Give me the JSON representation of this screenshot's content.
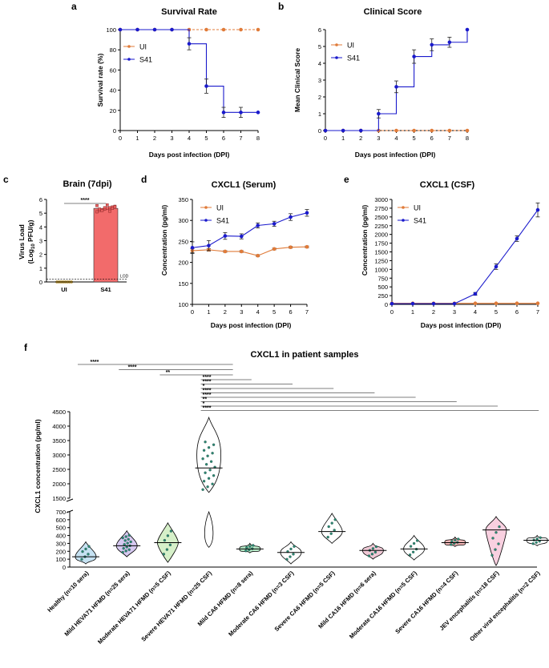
{
  "colors": {
    "ui": "#E07B39",
    "s41": "#1A1ACC",
    "bar": "#F26B6B",
    "dot_bar": "#E85F5F",
    "dot_ui": "#F0C040",
    "violin_dot": "#2E8B73"
  },
  "panels": {
    "a": {
      "letter": "a",
      "title": "Survival Rate",
      "ylabel": "Survival rate (%)",
      "xlabel": "Days post infection (DPI)"
    },
    "b": {
      "letter": "b",
      "title": "Clinical Score",
      "ylabel": "Mean Clinical Score",
      "xlabel": "Days post infection (DPI)"
    },
    "c": {
      "letter": "c",
      "title": "Brain (7dpi)",
      "ylabel_line1": "Virus Load",
      "ylabel_line2": "(Log10 PFU/g)",
      "lod": "LOD",
      "sig": "****"
    },
    "d": {
      "letter": "d",
      "title": "CXCL1 (Serum)",
      "ylabel": "Concentration (pg/ml)",
      "xlabel": "Days post infection (DPI)"
    },
    "e": {
      "letter": "e",
      "title": "CXCL1 (CSF)",
      "ylabel": "Concentration (pg/ml)",
      "xlabel": "Days post infection (DPI)"
    },
    "f": {
      "letter": "f",
      "title": "CXCL1 in patient samples",
      "ylabel": "CXCL1 concentration (pg/ml)"
    }
  },
  "chart_data": [
    {
      "panel": "a",
      "type": "line",
      "step": true,
      "x": [
        0,
        1,
        2,
        3,
        4,
        5,
        6,
        7,
        8
      ],
      "xlim": [
        0,
        8
      ],
      "ylim": [
        0,
        100
      ],
      "xticks": [
        "0",
        "1",
        "2",
        "3",
        "4",
        "5",
        "6",
        "7",
        "8"
      ],
      "yticks": [
        "0",
        "20",
        "40",
        "60",
        "80",
        "100"
      ],
      "series": [
        {
          "name": "UI",
          "values": [
            100,
            100,
            100,
            100,
            100,
            100,
            100,
            100,
            100
          ]
        },
        {
          "name": "S41",
          "values": [
            100,
            100,
            100,
            100,
            86,
            44,
            18,
            18,
            18
          ],
          "err": [
            0,
            0,
            0,
            0,
            6,
            7,
            5,
            5,
            0
          ]
        }
      ],
      "legend": "top-right"
    },
    {
      "panel": "b",
      "type": "line",
      "step": true,
      "x": [
        0,
        1,
        2,
        3,
        4,
        5,
        6,
        7,
        8
      ],
      "xlim": [
        0,
        8
      ],
      "ylim": [
        0,
        6
      ],
      "xticks": [
        "0",
        "1",
        "2",
        "3",
        "4",
        "5",
        "6",
        "7",
        "8"
      ],
      "yticks": [
        "0",
        "1",
        "2",
        "3",
        "4",
        "5",
        "6"
      ],
      "series": [
        {
          "name": "UI",
          "values": [
            0,
            0,
            0,
            0,
            0,
            0,
            0,
            0,
            0
          ]
        },
        {
          "name": "S41",
          "values": [
            0,
            0,
            0,
            1,
            2.6,
            4.4,
            5.1,
            5.25,
            6
          ],
          "err": [
            0,
            0,
            0,
            0.25,
            0.35,
            0.4,
            0.35,
            0.3,
            0
          ]
        }
      ],
      "legend": "top-left"
    },
    {
      "panel": "c",
      "type": "bar",
      "categories": [
        "UI",
        "S41"
      ],
      "values": [
        0,
        5.35
      ],
      "err": [
        0,
        0.15
      ],
      "ylim": [
        0,
        6
      ],
      "yticks": [
        "0",
        "1",
        "2",
        "3",
        "4",
        "5",
        "6"
      ],
      "lod": 0.2
    },
    {
      "panel": "d",
      "type": "line",
      "x": [
        0,
        1,
        2,
        3,
        4,
        5,
        6,
        7
      ],
      "xlim": [
        0,
        7
      ],
      "ylim": [
        100,
        350
      ],
      "xticks": [
        "0",
        "1",
        "2",
        "3",
        "4",
        "5",
        "6",
        "7"
      ],
      "yticks": [
        "100",
        "150",
        "200",
        "250",
        "300",
        "350"
      ],
      "series": [
        {
          "name": "UI",
          "values": [
            228,
            230,
            226,
            226,
            216,
            232,
            236,
            237
          ],
          "err": [
            5,
            3,
            2,
            2,
            2,
            2,
            2,
            2
          ]
        },
        {
          "name": "S41",
          "values": [
            235,
            240,
            263,
            262,
            288,
            292,
            308,
            318
          ],
          "err": [
            14,
            12,
            8,
            6,
            6,
            6,
            8,
            8
          ]
        }
      ],
      "legend": "top-left"
    },
    {
      "panel": "e",
      "type": "line",
      "x": [
        0,
        1,
        2,
        3,
        4,
        5,
        6,
        7
      ],
      "xlim": [
        0,
        7
      ],
      "ylim": [
        0,
        3000
      ],
      "xticks": [
        "0",
        "1",
        "2",
        "3",
        "4",
        "5",
        "6",
        "7"
      ],
      "yticks": [
        "0",
        "250",
        "500",
        "750",
        "1000",
        "1250",
        "1500",
        "1750",
        "2000",
        "2250",
        "2500",
        "2750",
        "3000"
      ],
      "series": [
        {
          "name": "UI",
          "values": [
            30,
            30,
            30,
            30,
            30,
            30,
            30,
            30
          ]
        },
        {
          "name": "S41",
          "values": [
            20,
            20,
            20,
            20,
            300,
            1080,
            1880,
            2700
          ],
          "err": [
            0,
            0,
            0,
            0,
            40,
            80,
            80,
            200
          ]
        }
      ],
      "legend": "top-left"
    },
    {
      "panel": "f",
      "type": "violin",
      "categories": [
        "Healthy (n=10 sera)",
        "Mild HEVA71 HFMD (n=25 sera)",
        "Moderate HEVA71 HFMD (n=5 CSF)",
        "Severe HEVA71 HFMD (n=25 CSF)",
        "Mild CA6 HFMD (n=8 sera)",
        "Moderate CA6 HFMD (n=3 CSF)",
        "Severe CA6 HFMD (n=5 CSF)",
        "Mild CA16 HFMD (n=6 sera)",
        "Moderate CA16 HFMD (n=5 CSF)",
        "Severe CA16 HFMD (n=4 CSF)",
        "JEV encephalitis (n=18 CSF)",
        "Other viral encephalitis (n=2 CSF)"
      ],
      "medians": [
        130,
        270,
        310,
        2550,
        230,
        185,
        450,
        210,
        230,
        310,
        470,
        340
      ],
      "ranges": [
        [
          40,
          320
        ],
        [
          130,
          460
        ],
        [
          60,
          560
        ],
        [
          1700,
          4300
        ],
        [
          180,
          300
        ],
        [
          40,
          320
        ],
        [
          300,
          680
        ],
        [
          100,
          300
        ],
        [
          90,
          400
        ],
        [
          260,
          380
        ],
        [
          20,
          640
        ],
        [
          270,
          400
        ]
      ],
      "yticks_low": [
        "0",
        "100",
        "200",
        "300",
        "400",
        "500",
        "600",
        "700"
      ],
      "yticks_high": [
        "1500",
        "2000",
        "2500",
        "3000",
        "3500",
        "4000",
        "4500"
      ],
      "sig_top": [
        {
          "from": 0,
          "to": 3,
          "label": "****"
        },
        {
          "from": 1,
          "to": 3,
          "label": "****"
        },
        {
          "from": 2,
          "to": 3,
          "label": "**"
        }
      ],
      "sig_bottom": [
        {
          "from": 3,
          "to": 4,
          "label": "****"
        },
        {
          "from": 3,
          "to": 5,
          "label": "****"
        },
        {
          "from": 3,
          "to": 6,
          "label": "*"
        },
        {
          "from": 3,
          "to": 7,
          "label": "****"
        },
        {
          "from": 3,
          "to": 8,
          "label": "****"
        },
        {
          "from": 3,
          "to": 9,
          "label": "**"
        },
        {
          "from": 3,
          "to": 10,
          "label": "*"
        },
        {
          "from": 3,
          "to": 11,
          "label": "****"
        }
      ]
    }
  ]
}
